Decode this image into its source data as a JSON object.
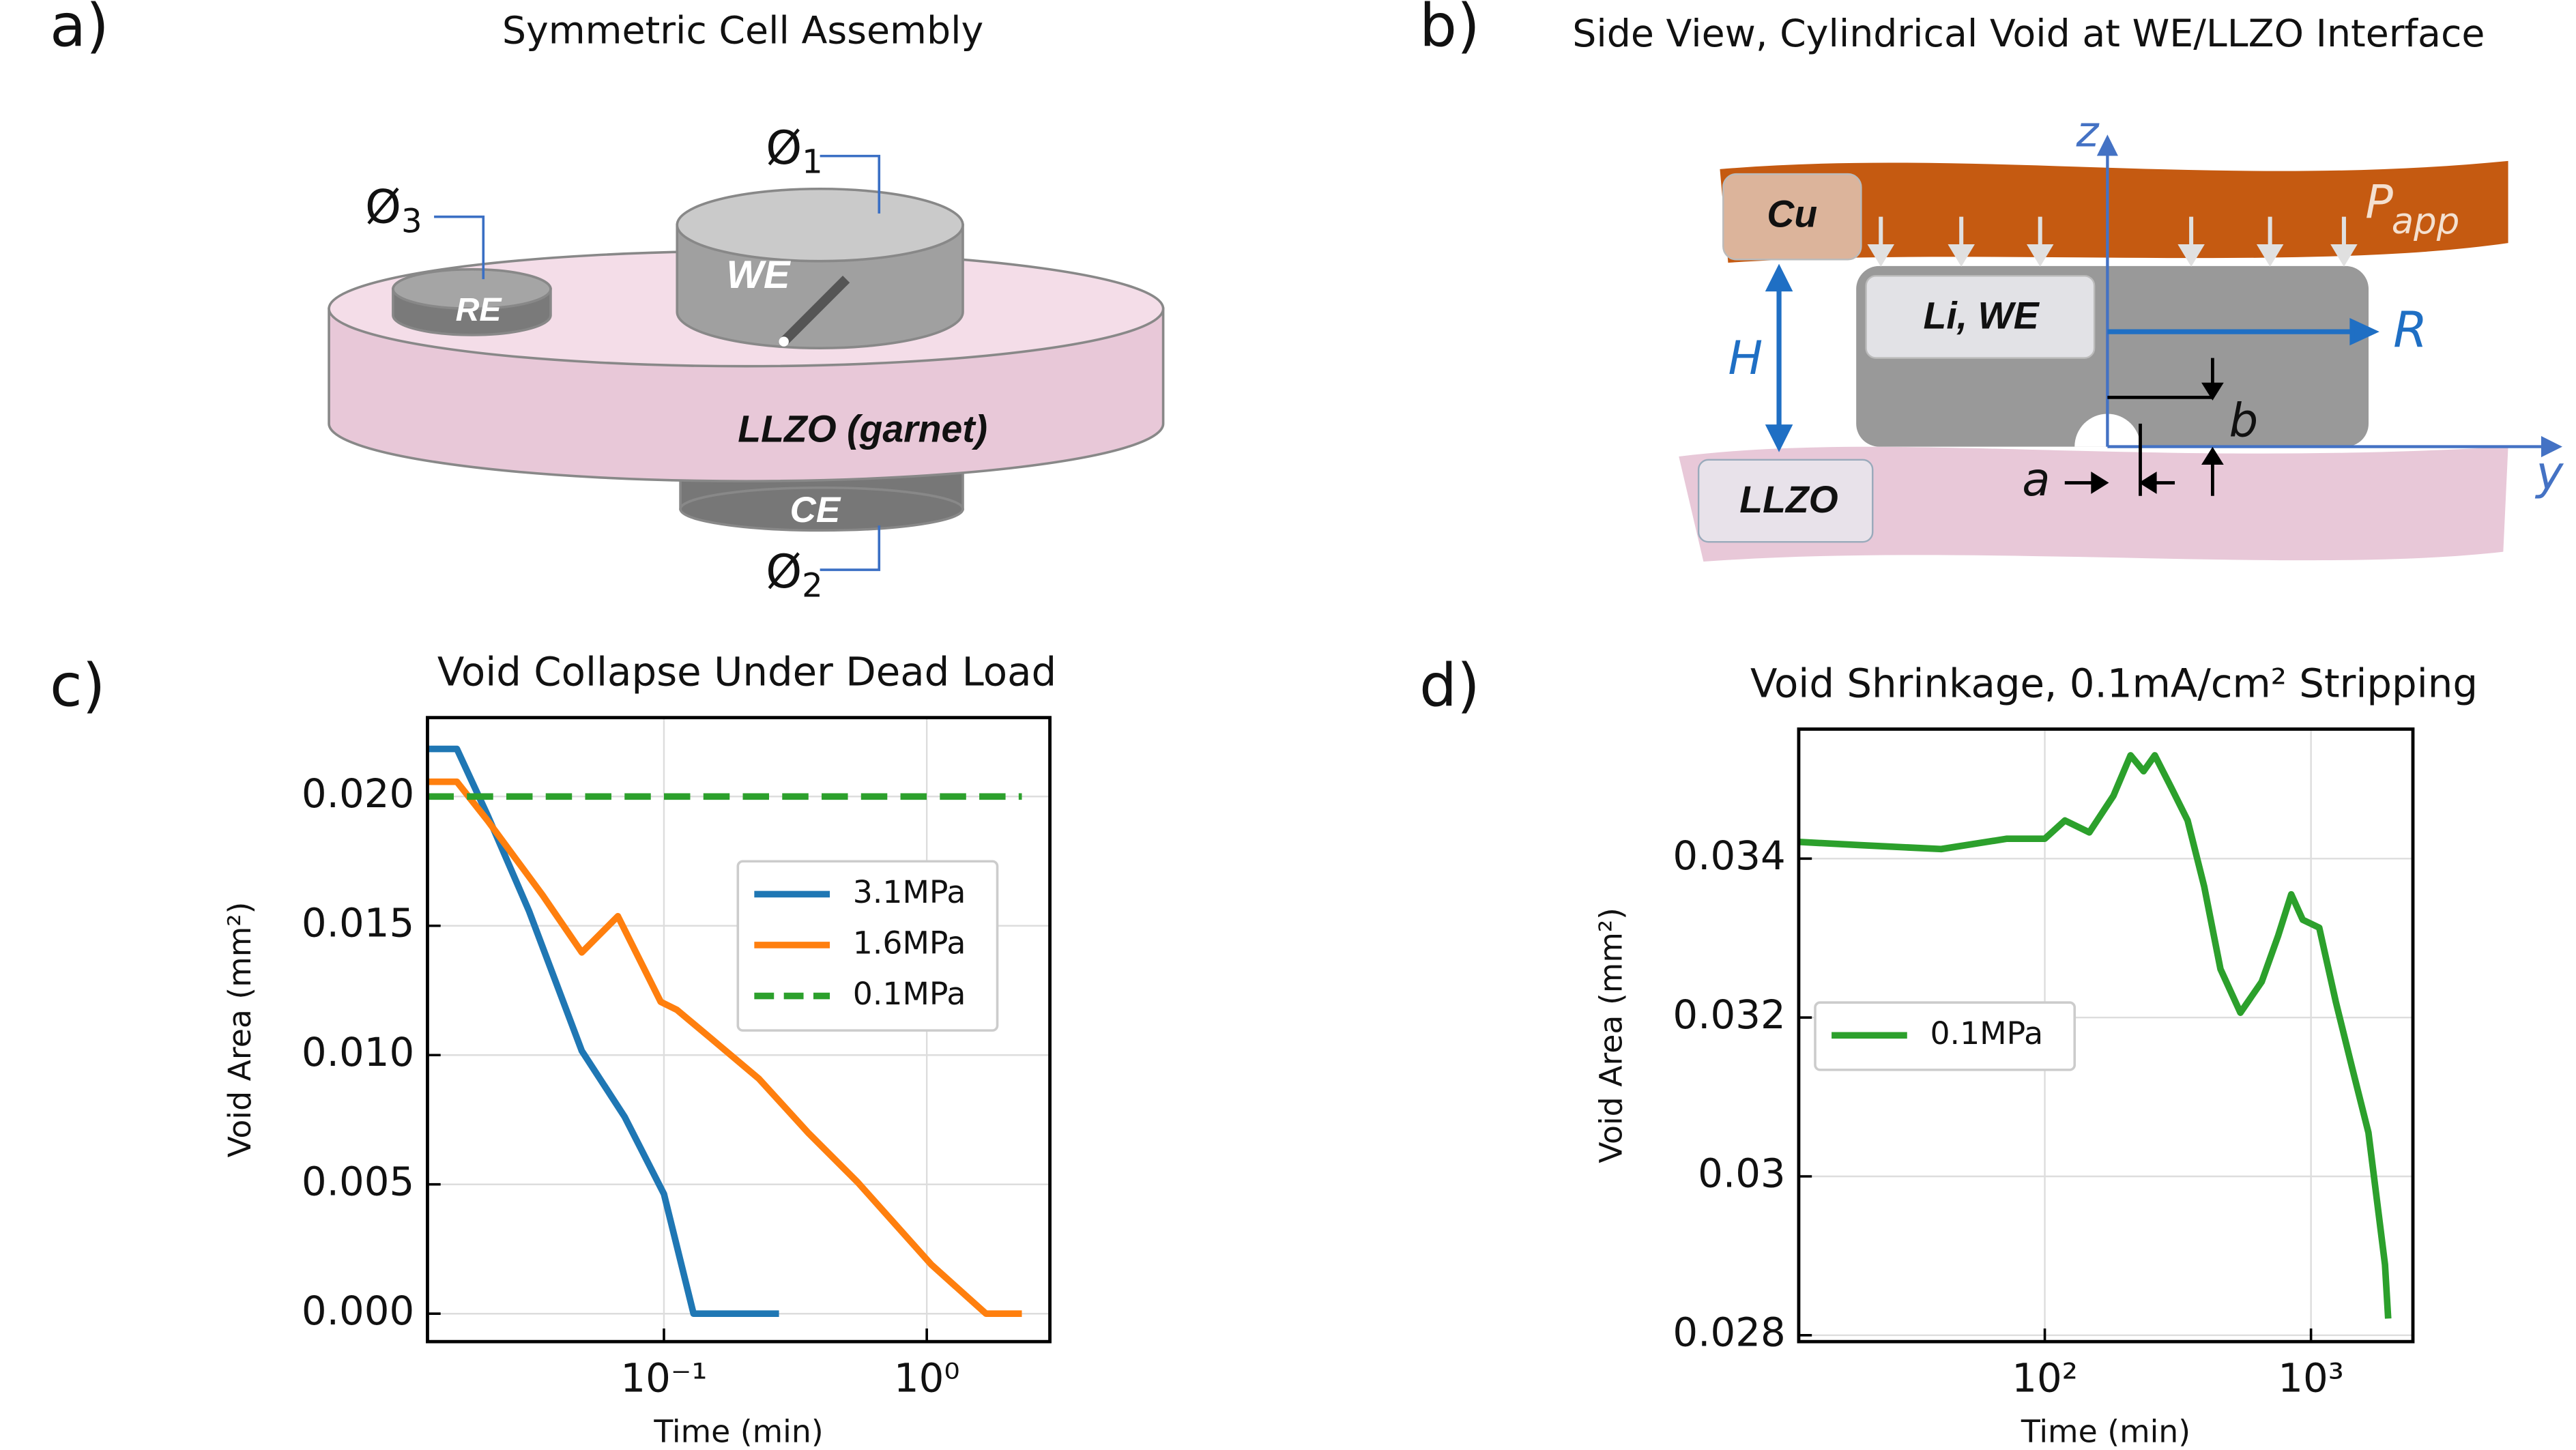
{
  "panel_a": {
    "label": "a)",
    "title": "Symmetric Cell Assembly",
    "we": "WE",
    "re": "RE",
    "ce": "CE",
    "llzo": "LLZO (garnet)",
    "diameters": [
      {
        "symbol": "Ø",
        "index": "1"
      },
      {
        "symbol": "Ø",
        "index": "2"
      },
      {
        "symbol": "Ø",
        "index": "3"
      }
    ]
  },
  "panel_b": {
    "label": "b)",
    "title": "Side View, Cylindrical Void at WE/LLZO Interface",
    "cu": "Cu",
    "li": "Li, WE",
    "llzo": "LLZO",
    "z": "z",
    "y": "y",
    "r": "R",
    "h": "H",
    "a": "a",
    "b": "b",
    "p": "P",
    "p_sub": "app"
  },
  "chart_data": [
    {
      "type": "line",
      "panel_label": "c)",
      "title": "Void Collapse Under Dead Load",
      "x_label": "Time (min)",
      "y_label": "Void Area (mm²)",
      "xscale": "log",
      "grid": true,
      "legend": "center right",
      "xlim": [
        0.0126,
        2.94
      ],
      "xticks": [
        {
          "value": 0.1,
          "label": "10⁻¹"
        },
        {
          "value": 1,
          "label": "10⁰"
        }
      ],
      "ylim": [
        -0.00108,
        0.02305
      ],
      "yticks": [
        {
          "value": 0,
          "label": "0.000"
        },
        {
          "value": 0.005,
          "label": "0.005"
        },
        {
          "value": 0.01,
          "label": "0.010"
        },
        {
          "value": 0.015,
          "label": "0.015"
        },
        {
          "value": 0.02,
          "label": "0.020"
        }
      ],
      "series": [
        {
          "name": "3.1MPa",
          "color": "#1f77b4",
          "linestyle": "solid",
          "x": [
            0.0126,
            0.0163,
            0.0214,
            0.0307,
            0.0487,
            0.0708,
            0.1,
            0.1296,
            0.274
          ],
          "values": [
            0.02184,
            0.02184,
            0.01924,
            0.01556,
            0.01016,
            0.00762,
            0.00463,
            0,
            0
          ]
        },
        {
          "name": "1.6MPa",
          "color": "#ff7f0e",
          "linestyle": "solid",
          "x": [
            0.0126,
            0.0163,
            0.0214,
            0.0345,
            0.0487,
            0.0668,
            0.0972,
            0.112,
            0.15,
            0.23,
            0.355,
            0.546,
            1.04,
            1.68,
            2.3
          ],
          "values": [
            0.02057,
            0.02057,
            0.01905,
            0.01619,
            0.01397,
            0.01537,
            0.01206,
            0.01175,
            0.01067,
            0.00908,
            0.00698,
            0.00508,
            0.0019,
            0,
            0
          ]
        },
        {
          "name": "0.1MPa",
          "color": "#2ca02c",
          "linestyle": "dashed",
          "x": [
            0.0126,
            2.3
          ],
          "values": [
            0.02,
            0.02
          ]
        }
      ]
    },
    {
      "type": "line",
      "panel_label": "d)",
      "title": "Void Shrinkage, 0.1mA/cm² Stripping",
      "x_label": "Time (min)",
      "y_label": "Void Area (mm²)",
      "xscale": "log",
      "grid": true,
      "legend": "center left",
      "xlim": [
        11.9,
        2415
      ],
      "xticks": [
        {
          "value": 100,
          "label": "10²"
        },
        {
          "value": 1000,
          "label": "10³"
        }
      ],
      "ylim": [
        0.02792,
        0.03563
      ],
      "yticks": [
        0.028,
        0.03,
        0.032,
        0.034
      ],
      "series": [
        {
          "name": "0.1MPa",
          "color": "#2ca02c",
          "linestyle": "solid",
          "x": [
            11.9,
            20,
            40.8,
            72.1,
            100,
            119,
            147,
            181,
            210,
            235,
            259,
            299,
            344,
            397,
            457,
            543,
            653,
            753,
            843,
            931,
            1074,
            1239,
            1427,
            1644,
            1766,
            1897,
            1950
          ],
          "values": [
            0.03421,
            0.03417,
            0.03412,
            0.03425,
            0.03425,
            0.03448,
            0.03433,
            0.03479,
            0.0353,
            0.0351,
            0.0353,
            0.03489,
            0.03448,
            0.03365,
            0.03261,
            0.03206,
            0.03245,
            0.03303,
            0.03355,
            0.03323,
            0.03313,
            0.0322,
            0.03137,
            0.03055,
            0.02972,
            0.02889,
            0.02821
          ]
        }
      ]
    }
  ]
}
